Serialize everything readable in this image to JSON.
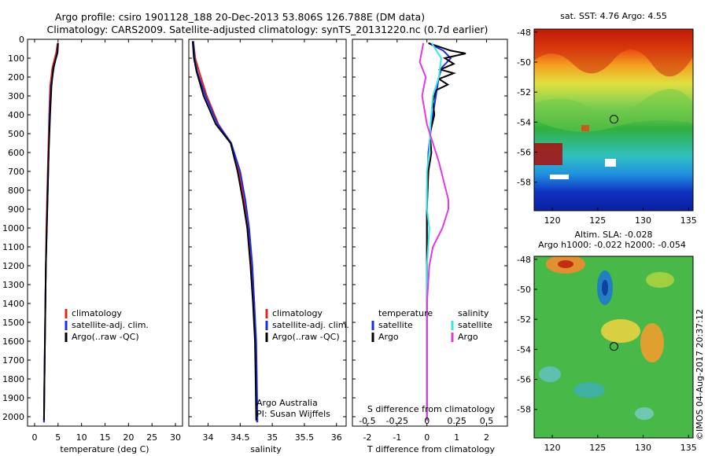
{
  "title": {
    "line1": "Argo profile: csiro 1901128_188 20-Dec-2013 53.806S 126.788E (DM data)",
    "line2": "Climatology: CARS2009. Satellite-adjusted climatology: synTS_20131220.nc (0.7d earlier)"
  },
  "colors": {
    "climatology": "#e8241a",
    "satellite": "#1a2ee6",
    "argo": "#000000",
    "s_satellite": "#37e6e6",
    "s_argo": "#e637e6"
  },
  "chart_data": [
    {
      "type": "line",
      "panel": "temperature",
      "xlabel": "temperature (deg C)",
      "ylabel": "",
      "xlim": [
        -1.5,
        31.5
      ],
      "ylim": [
        2050,
        0
      ],
      "xticks": [
        0,
        5,
        10,
        15,
        20,
        25,
        30
      ],
      "yticks": [
        0,
        100,
        200,
        300,
        400,
        500,
        600,
        700,
        800,
        900,
        1000,
        1100,
        1200,
        1300,
        1400,
        1500,
        1600,
        1700,
        1800,
        1900,
        2000
      ],
      "legend": [
        "climatology",
        "satellite-adj. clim.",
        "Argo(..raw -QC)"
      ],
      "legend_position": "center-right",
      "series": [
        {
          "name": "climatology",
          "color_key": "climatology",
          "points": [
            [
              4.9,
              20
            ],
            [
              4.6,
              70
            ],
            [
              3.8,
              150
            ],
            [
              3.3,
              250
            ],
            [
              3.1,
              400
            ],
            [
              2.9,
              600
            ],
            [
              2.7,
              800
            ],
            [
              2.5,
              1000
            ],
            [
              2.4,
              1200
            ],
            [
              2.3,
              1400
            ],
            [
              2.2,
              1600
            ],
            [
              2.1,
              1800
            ],
            [
              2.0,
              2030
            ]
          ]
        },
        {
          "name": "satellite-adj. clim.",
          "color_key": "satellite",
          "points": [
            [
              5.0,
              20
            ],
            [
              4.8,
              70
            ],
            [
              4.1,
              150
            ],
            [
              3.5,
              250
            ],
            [
              3.2,
              400
            ],
            [
              3.0,
              600
            ],
            [
              2.8,
              800
            ],
            [
              2.6,
              1000
            ],
            [
              2.4,
              1200
            ],
            [
              2.3,
              1400
            ],
            [
              2.2,
              1600
            ],
            [
              2.1,
              1800
            ],
            [
              2.0,
              2030
            ]
          ]
        },
        {
          "name": "Argo(..raw -QC)",
          "color_key": "argo",
          "points": [
            [
              5.0,
              20
            ],
            [
              4.9,
              70
            ],
            [
              4.0,
              150
            ],
            [
              3.6,
              250
            ],
            [
              3.3,
              400
            ],
            [
              3.0,
              600
            ],
            [
              2.8,
              800
            ],
            [
              2.6,
              1000
            ],
            [
              2.4,
              1200
            ],
            [
              2.3,
              1400
            ],
            [
              2.2,
              1600
            ],
            [
              2.1,
              1800
            ],
            [
              2.0,
              2020
            ]
          ]
        }
      ]
    },
    {
      "type": "line",
      "panel": "salinity",
      "xlabel": "salinity",
      "xlim": [
        33.7,
        36.15
      ],
      "ylim": [
        2050,
        0
      ],
      "xticks": [
        34,
        34.5,
        35,
        35.5,
        36
      ],
      "legend": [
        "climatology",
        "satellite-adj. clim.",
        "Argo(..raw -QC)"
      ],
      "legend_position": "center-right",
      "annotations": [
        "Argo Australia",
        "PI: Susan Wijffels"
      ],
      "series": [
        {
          "name": "climatology",
          "color_key": "climatology",
          "points": [
            [
              33.77,
              10
            ],
            [
              33.8,
              100
            ],
            [
              33.86,
              170
            ],
            [
              33.98,
              300
            ],
            [
              34.16,
              450
            ],
            [
              34.36,
              550
            ],
            [
              34.48,
              700
            ],
            [
              34.56,
              850
            ],
            [
              34.63,
              1000
            ],
            [
              34.68,
              1200
            ],
            [
              34.72,
              1400
            ],
            [
              34.74,
              1600
            ],
            [
              34.75,
              1800
            ],
            [
              34.76,
              2030
            ]
          ]
        },
        {
          "name": "satellite-adj. clim.",
          "color_key": "satellite",
          "points": [
            [
              33.77,
              10
            ],
            [
              33.79,
              100
            ],
            [
              33.83,
              170
            ],
            [
              33.96,
              300
            ],
            [
              34.15,
              450
            ],
            [
              34.36,
              550
            ],
            [
              34.5,
              700
            ],
            [
              34.58,
              850
            ],
            [
              34.64,
              1000
            ],
            [
              34.69,
              1200
            ],
            [
              34.72,
              1400
            ],
            [
              34.75,
              1600
            ],
            [
              34.76,
              1800
            ],
            [
              34.77,
              2030
            ]
          ]
        },
        {
          "name": "Argo(..raw -QC)",
          "color_key": "argo",
          "points": [
            [
              33.76,
              10
            ],
            [
              33.78,
              100
            ],
            [
              33.82,
              170
            ],
            [
              33.93,
              300
            ],
            [
              34.12,
              450
            ],
            [
              34.35,
              550
            ],
            [
              34.46,
              700
            ],
            [
              34.54,
              850
            ],
            [
              34.61,
              1000
            ],
            [
              34.66,
              1200
            ],
            [
              34.7,
              1400
            ],
            [
              34.73,
              1600
            ],
            [
              34.74,
              1800
            ],
            [
              34.75,
              2020
            ]
          ]
        }
      ]
    },
    {
      "type": "line",
      "panel": "differences",
      "xlabel": "T difference from climatology",
      "xlabel_top": "S difference from climatology",
      "xlim": [
        -2.5,
        2.7
      ],
      "ylim": [
        2050,
        0
      ],
      "xticks": [
        -2,
        -1,
        0,
        1,
        2
      ],
      "xticks_s": [
        -0.5,
        -0.25,
        0,
        0.25,
        0.5
      ],
      "legend_temperature": {
        "title": "temperature",
        "items": [
          "satellite",
          "Argo"
        ]
      },
      "legend_salinity": {
        "title": "salinity",
        "items": [
          "satellite",
          "Argo"
        ]
      },
      "series": [
        {
          "name": "satellite",
          "group": "temperature",
          "color_key": "satellite",
          "points": [
            [
              0.05,
              20
            ],
            [
              0.55,
              60
            ],
            [
              0.8,
              100
            ],
            [
              0.5,
              150
            ],
            [
              0.4,
              200
            ],
            [
              0.3,
              300
            ],
            [
              0.15,
              450
            ],
            [
              0.05,
              600
            ],
            [
              0,
              800
            ],
            [
              0,
              1000
            ],
            [
              0,
              1200
            ],
            [
              0,
              1500
            ],
            [
              0,
              1800
            ],
            [
              0,
              2020
            ]
          ]
        },
        {
          "name": "Argo",
          "group": "temperature",
          "color_key": "argo",
          "points": [
            [
              0.05,
              20
            ],
            [
              0.8,
              60
            ],
            [
              1.3,
              75
            ],
            [
              0.6,
              100
            ],
            [
              0.9,
              130
            ],
            [
              0.45,
              160
            ],
            [
              0.9,
              180
            ],
            [
              0.4,
              210
            ],
            [
              0.7,
              240
            ],
            [
              0.3,
              270
            ],
            [
              0.2,
              330
            ],
            [
              0.25,
              400
            ],
            [
              0.1,
              500
            ],
            [
              0.15,
              600
            ],
            [
              0.05,
              700
            ],
            [
              0,
              900
            ],
            [
              0,
              1200
            ],
            [
              0,
              1500
            ],
            [
              0,
              1800
            ],
            [
              0,
              2020
            ]
          ]
        },
        {
          "name": "satellite",
          "group": "salinity",
          "color_key": "s_satellite",
          "points": [
            [
              0.04,
              20
            ],
            [
              0.12,
              100
            ],
            [
              0.1,
              200
            ],
            [
              0.05,
              300
            ],
            [
              0.03,
              450
            ],
            [
              0.02,
              600
            ],
            [
              0,
              700
            ],
            [
              0,
              850
            ],
            [
              0,
              900
            ],
            [
              0.02,
              1000
            ],
            [
              0.01,
              1100
            ],
            [
              0,
              1200
            ],
            [
              0,
              1500
            ],
            [
              0,
              1800
            ],
            [
              0,
              2020
            ]
          ]
        },
        {
          "name": "Argo",
          "group": "salinity",
          "color_key": "s_argo",
          "points": [
            [
              -0.03,
              20
            ],
            [
              -0.06,
              120
            ],
            [
              -0.01,
              200
            ],
            [
              -0.04,
              300
            ],
            [
              0,
              450
            ],
            [
              0.05,
              550
            ],
            [
              0.1,
              650
            ],
            [
              0.14,
              750
            ],
            [
              0.18,
              850
            ],
            [
              0.18,
              900
            ],
            [
              0.13,
              1000
            ],
            [
              0.05,
              1100
            ],
            [
              0.02,
              1200
            ],
            [
              0,
              1400
            ],
            [
              0,
              1600
            ],
            [
              0,
              1800
            ],
            [
              0,
              2020
            ]
          ]
        }
      ]
    },
    {
      "type": "heatmap",
      "panel": "sst_map",
      "title": "sat. SST: 4.76 Argo: 4.55",
      "xlim": [
        118,
        135.5
      ],
      "ylim": [
        -59.9,
        -47.8
      ],
      "xticks": [
        120,
        125,
        130,
        135
      ],
      "yticks": [
        -48,
        -50,
        -52,
        -54,
        -56,
        -58
      ],
      "marker": {
        "lon": 126.788,
        "lat": -53.806
      }
    },
    {
      "type": "heatmap",
      "panel": "sla_map",
      "title": "Altim. SLA: -0.028",
      "subtitle": "Argo h1000: -0.022 h2000: -0.054",
      "xlim": [
        118,
        135.5
      ],
      "ylim": [
        -59.9,
        -47.8
      ],
      "xticks": [
        120,
        125,
        130,
        135
      ],
      "yticks": [
        -48,
        -50,
        -52,
        -54,
        -56,
        -58
      ],
      "marker": {
        "lon": 126.788,
        "lat": -53.806
      }
    }
  ],
  "footer": {
    "credit": "©IMOS 04-Aug-2017 20:37:12"
  }
}
